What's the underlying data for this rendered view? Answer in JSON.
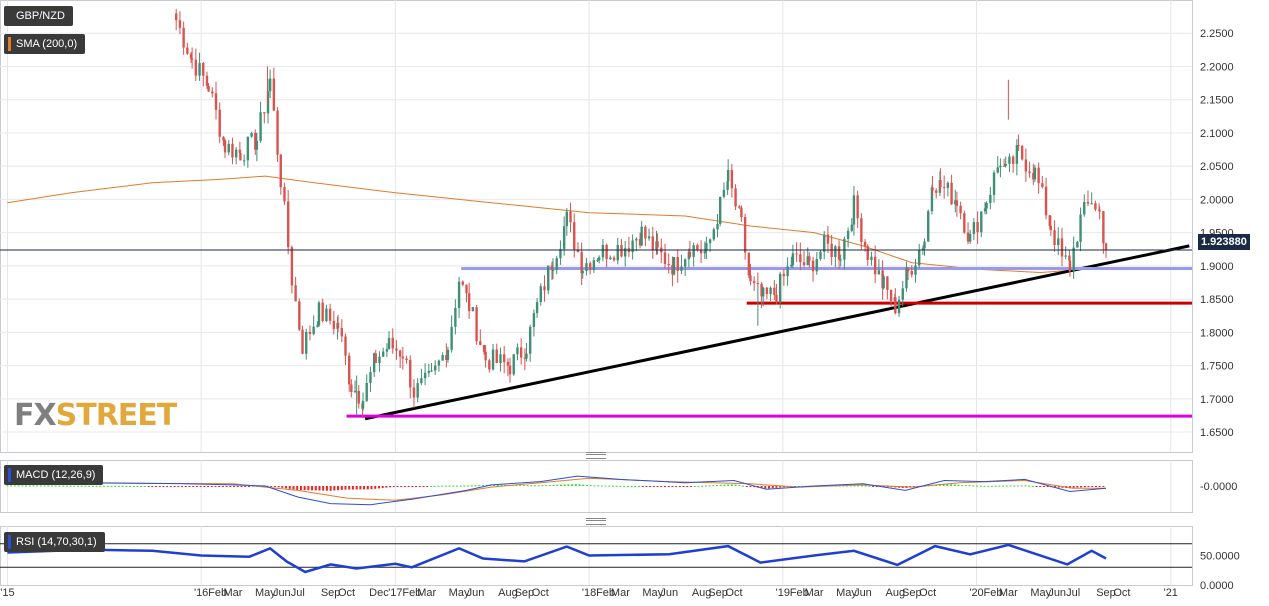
{
  "instrument": "GBP/NZD",
  "overlays": {
    "sma_label": "SMA (200,0)",
    "sma_color": "#e07c2c"
  },
  "last_price": "1.923880",
  "watermark": {
    "fx": "FX",
    "street": "STREET"
  },
  "chart_data": [
    {
      "type": "candlestick",
      "title": "GBP/NZD",
      "timeframe_hint": "weekly",
      "ylim": [
        1.62,
        2.3
      ],
      "yticks": [
        {
          "v": 1.65,
          "label": "1.6500"
        },
        {
          "v": 1.7,
          "label": "1.7000"
        },
        {
          "v": 1.75,
          "label": "1.7500"
        },
        {
          "v": 1.8,
          "label": "1.8000"
        },
        {
          "v": 1.85,
          "label": "1.8500"
        },
        {
          "v": 1.9,
          "label": "1.9000"
        },
        {
          "v": 1.95,
          "label": "1.9500"
        },
        {
          "v": 2.0,
          "label": "2.0000"
        },
        {
          "v": 2.05,
          "label": "2.0500"
        },
        {
          "v": 2.1,
          "label": "2.1000"
        },
        {
          "v": 2.15,
          "label": "2.1500"
        },
        {
          "v": 2.2,
          "label": "2.2000"
        },
        {
          "v": 2.25,
          "label": "2.2500"
        }
      ],
      "grid": true,
      "last_price": 1.92388,
      "close_path": [
        [
          "2015-11-15",
          2.27
        ],
        [
          "2015-12-15",
          2.21
        ],
        [
          "2016-01-15",
          2.17
        ],
        [
          "2016-02-15",
          2.08
        ],
        [
          "2016-03-15",
          2.07
        ],
        [
          "2016-04-15",
          2.09
        ],
        [
          "2016-05-10",
          2.18
        ],
        [
          "2016-05-30",
          2.03
        ],
        [
          "2016-06-20",
          1.88
        ],
        [
          "2016-07-10",
          1.78
        ],
        [
          "2016-08-10",
          1.83
        ],
        [
          "2016-09-15",
          1.81
        ],
        [
          "2016-10-10",
          1.72
        ],
        [
          "2016-11-01",
          1.7
        ],
        [
          "2016-11-25",
          1.76
        ],
        [
          "2016-12-20",
          1.78
        ],
        [
          "2017-01-15",
          1.77
        ],
        [
          "2017-02-05",
          1.71
        ],
        [
          "2017-03-10",
          1.73
        ],
        [
          "2017-04-10",
          1.78
        ],
        [
          "2017-05-01",
          1.88
        ],
        [
          "2017-05-20",
          1.84
        ],
        [
          "2017-06-20",
          1.76
        ],
        [
          "2017-08-05",
          1.75
        ],
        [
          "2017-09-05",
          1.78
        ],
        [
          "2017-09-25",
          1.84
        ],
        [
          "2017-10-25",
          1.91
        ],
        [
          "2017-11-20",
          1.97
        ],
        [
          "2017-12-20",
          1.9
        ],
        [
          "2018-01-20",
          1.92
        ],
        [
          "2018-03-10",
          1.93
        ],
        [
          "2018-04-10",
          1.95
        ],
        [
          "2018-05-10",
          1.92
        ],
        [
          "2018-06-10",
          1.9
        ],
        [
          "2018-07-10",
          1.93
        ],
        [
          "2018-08-10",
          1.92
        ],
        [
          "2018-09-05",
          1.99
        ],
        [
          "2018-09-20",
          2.03
        ],
        [
          "2018-10-15",
          1.96
        ],
        [
          "2018-11-01",
          1.87
        ],
        [
          "2018-11-25",
          1.85
        ],
        [
          "2018-12-20",
          1.86
        ],
        [
          "2019-01-20",
          1.91
        ],
        [
          "2019-02-20",
          1.9
        ],
        [
          "2019-03-20",
          1.93
        ],
        [
          "2019-04-20",
          1.92
        ],
        [
          "2019-05-15",
          1.99
        ],
        [
          "2019-06-10",
          1.92
        ],
        [
          "2019-07-10",
          1.87
        ],
        [
          "2019-08-01",
          1.84
        ],
        [
          "2019-08-25",
          1.89
        ],
        [
          "2019-09-25",
          1.94
        ],
        [
          "2019-10-10",
          2.03
        ],
        [
          "2019-10-25",
          2.02
        ],
        [
          "2019-11-25",
          2.0
        ],
        [
          "2019-12-20",
          1.94
        ],
        [
          "2020-01-20",
          2.0
        ],
        [
          "2020-02-15",
          2.06
        ],
        [
          "2020-02-25",
          2.04
        ],
        [
          "2020-03-20",
          2.07
        ],
        [
          "2020-04-20",
          2.04
        ],
        [
          "2020-05-20",
          1.96
        ],
        [
          "2020-06-10",
          1.91
        ],
        [
          "2020-06-25",
          1.9
        ],
        [
          "2020-07-15",
          1.97
        ],
        [
          "2020-08-05",
          2.0
        ],
        [
          "2020-08-20",
          1.98
        ],
        [
          "2020-09-01",
          1.92388
        ]
      ],
      "extremes": [
        {
          "date": "2016-05-05",
          "value": 2.2
        },
        {
          "date": "2016-10-20",
          "value": 1.675
        },
        {
          "date": "2018-11-15",
          "value": 1.81
        },
        {
          "date": "2020-03-01",
          "value": 2.18
        }
      ],
      "overlays": [
        {
          "name": "SMA (200,0)",
          "type": "line",
          "color": "#e07c2c",
          "points": [
            [
              "2015-01-01",
              1.995
            ],
            [
              "2015-05-01",
              2.01
            ],
            [
              "2015-10-01",
              2.025
            ],
            [
              "2016-02-01",
              2.03
            ],
            [
              "2016-05-01",
              2.035
            ],
            [
              "2016-08-01",
              2.025
            ],
            [
              "2017-01-01",
              2.01
            ],
            [
              "2017-07-01",
              1.995
            ],
            [
              "2018-01-01",
              1.98
            ],
            [
              "2018-07-01",
              1.975
            ],
            [
              "2018-11-01",
              1.96
            ],
            [
              "2019-03-01",
              1.95
            ],
            [
              "2019-06-01",
              1.93
            ],
            [
              "2019-09-01",
              1.905
            ],
            [
              "2020-01-01",
              1.895
            ],
            [
              "2020-05-01",
              1.89
            ],
            [
              "2020-09-01",
              1.897
            ]
          ]
        },
        {
          "name": "support-trendline",
          "type": "line",
          "color": "#000000",
          "points": [
            [
              "2016-11-05",
              1.67
            ],
            [
              "2021-02-05",
              1.93
            ]
          ]
        },
        {
          "name": "resistance-level-1.8960",
          "type": "hline",
          "color": "#9999ee",
          "value": 1.896,
          "from": "2017-05-05"
        },
        {
          "name": "support-level-1.8440",
          "type": "hline",
          "color": "#cc0000",
          "value": 1.844,
          "from": "2018-10-25"
        },
        {
          "name": "support-level-1.6740",
          "type": "hline",
          "color": "#dd00dd",
          "value": 1.674,
          "from": "2016-10-01"
        }
      ],
      "x_labels": [
        {
          "date": "2015-01-01",
          "label": "'15"
        },
        {
          "date": "2016-01-01",
          "label": "'16"
        },
        {
          "date": "2016-02-01",
          "label": "Feb"
        },
        {
          "date": "2016-03-01",
          "label": "Mar"
        },
        {
          "date": "2016-05-01",
          "label": "May"
        },
        {
          "date": "2016-06-01",
          "label": "Jun"
        },
        {
          "date": "2016-07-01",
          "label": "Jul"
        },
        {
          "date": "2016-09-01",
          "label": "Sep"
        },
        {
          "date": "2016-10-01",
          "label": "Oct"
        },
        {
          "date": "2016-12-01",
          "label": "Dec"
        },
        {
          "date": "2017-01-01",
          "label": "'17"
        },
        {
          "date": "2017-02-01",
          "label": "Feb"
        },
        {
          "date": "2017-03-01",
          "label": "Mar"
        },
        {
          "date": "2017-05-01",
          "label": "May"
        },
        {
          "date": "2017-06-01",
          "label": "Jun"
        },
        {
          "date": "2017-08-01",
          "label": "Aug"
        },
        {
          "date": "2017-09-01",
          "label": "Sep"
        },
        {
          "date": "2017-10-01",
          "label": "Oct"
        },
        {
          "date": "2018-01-01",
          "label": "'18"
        },
        {
          "date": "2018-02-01",
          "label": "Feb"
        },
        {
          "date": "2018-03-01",
          "label": "Mar"
        },
        {
          "date": "2018-05-01",
          "label": "May"
        },
        {
          "date": "2018-06-01",
          "label": "Jun"
        },
        {
          "date": "2018-08-01",
          "label": "Aug"
        },
        {
          "date": "2018-09-01",
          "label": "Sep"
        },
        {
          "date": "2018-10-01",
          "label": "Oct"
        },
        {
          "date": "2019-01-01",
          "label": "'19"
        },
        {
          "date": "2019-02-01",
          "label": "Feb"
        },
        {
          "date": "2019-03-01",
          "label": "Mar"
        },
        {
          "date": "2019-05-01",
          "label": "May"
        },
        {
          "date": "2019-06-01",
          "label": "Jun"
        },
        {
          "date": "2019-08-01",
          "label": "Aug"
        },
        {
          "date": "2019-09-01",
          "label": "Sep"
        },
        {
          "date": "2019-10-01",
          "label": "Oct"
        },
        {
          "date": "2020-01-01",
          "label": "'20"
        },
        {
          "date": "2020-02-01",
          "label": "Feb"
        },
        {
          "date": "2020-03-01",
          "label": "Mar"
        },
        {
          "date": "2020-05-01",
          "label": "May"
        },
        {
          "date": "2020-06-01",
          "label": "Jun"
        },
        {
          "date": "2020-07-01",
          "label": "Jul"
        },
        {
          "date": "2020-09-01",
          "label": "Sep"
        },
        {
          "date": "2020-10-01",
          "label": "Oct"
        },
        {
          "date": "2021-01-01",
          "label": "'21"
        }
      ]
    },
    {
      "type": "line",
      "title": "MACD (12,26,9)",
      "yticks": [
        {
          "v": 0,
          "label": "-0.0000"
        }
      ],
      "ylim": [
        -1,
        1
      ],
      "macd_path": [
        [
          "2015-01-01",
          0.2
        ],
        [
          "2015-06-01",
          0.15
        ],
        [
          "2015-12-01",
          0.1
        ],
        [
          "2016-03-01",
          0.05
        ],
        [
          "2016-05-01",
          0.0
        ],
        [
          "2016-07-01",
          -0.5
        ],
        [
          "2016-09-01",
          -0.8
        ],
        [
          "2016-11-15",
          -0.85
        ],
        [
          "2017-02-01",
          -0.6
        ],
        [
          "2017-05-15",
          -0.2
        ],
        [
          "2017-07-01",
          0.05
        ],
        [
          "2017-10-01",
          0.2
        ],
        [
          "2017-12-10",
          0.45
        ],
        [
          "2018-03-01",
          0.3
        ],
        [
          "2018-07-01",
          0.15
        ],
        [
          "2018-10-01",
          0.25
        ],
        [
          "2018-12-01",
          -0.15
        ],
        [
          "2019-03-01",
          0.0
        ],
        [
          "2019-06-01",
          0.1
        ],
        [
          "2019-08-20",
          -0.2
        ],
        [
          "2019-11-01",
          0.25
        ],
        [
          "2020-01-15",
          0.2
        ],
        [
          "2020-04-01",
          0.3
        ],
        [
          "2020-06-25",
          -0.25
        ],
        [
          "2020-09-01",
          -0.1
        ]
      ],
      "signal_path": [
        [
          "2015-01-01",
          0.15
        ],
        [
          "2016-03-01",
          0.1
        ],
        [
          "2016-07-01",
          -0.2
        ],
        [
          "2016-10-01",
          -0.55
        ],
        [
          "2017-01-01",
          -0.65
        ],
        [
          "2017-04-01",
          -0.4
        ],
        [
          "2017-07-01",
          -0.05
        ],
        [
          "2017-10-01",
          0.15
        ],
        [
          "2018-01-01",
          0.35
        ],
        [
          "2018-06-01",
          0.2
        ],
        [
          "2018-11-01",
          0.1
        ],
        [
          "2019-02-01",
          -0.05
        ],
        [
          "2019-06-01",
          0.05
        ],
        [
          "2019-09-01",
          -0.05
        ],
        [
          "2019-12-01",
          0.15
        ],
        [
          "2020-04-01",
          0.25
        ],
        [
          "2020-07-01",
          -0.1
        ],
        [
          "2020-09-01",
          -0.1
        ]
      ]
    },
    {
      "type": "line",
      "title": "RSI (14,70,30,1)",
      "yticks": [
        {
          "v": 0,
          "label": "0.0000"
        },
        {
          "v": 50,
          "label": "50.0000"
        }
      ],
      "ylim": [
        0,
        100
      ],
      "levels": [
        70,
        30
      ],
      "rsi_path": [
        [
          "2015-01-01",
          55
        ],
        [
          "2015-06-01",
          60
        ],
        [
          "2015-10-01",
          58
        ],
        [
          "2016-01-01",
          50
        ],
        [
          "2016-04-01",
          48
        ],
        [
          "2016-05-10",
          62
        ],
        [
          "2016-06-10",
          40
        ],
        [
          "2016-07-15",
          22
        ],
        [
          "2016-09-01",
          35
        ],
        [
          "2016-10-20",
          28
        ],
        [
          "2017-01-01",
          36
        ],
        [
          "2017-02-01",
          30
        ],
        [
          "2017-05-01",
          62
        ],
        [
          "2017-06-15",
          45
        ],
        [
          "2017-09-01",
          40
        ],
        [
          "2017-11-20",
          65
        ],
        [
          "2018-01-01",
          50
        ],
        [
          "2018-06-01",
          52
        ],
        [
          "2018-09-20",
          66
        ],
        [
          "2018-11-20",
          38
        ],
        [
          "2019-03-01",
          50
        ],
        [
          "2019-05-15",
          58
        ],
        [
          "2019-08-05",
          34
        ],
        [
          "2019-10-15",
          66
        ],
        [
          "2019-12-20",
          52
        ],
        [
          "2020-03-01",
          68
        ],
        [
          "2020-06-20",
          35
        ],
        [
          "2020-08-05",
          58
        ],
        [
          "2020-09-01",
          45
        ]
      ]
    }
  ]
}
